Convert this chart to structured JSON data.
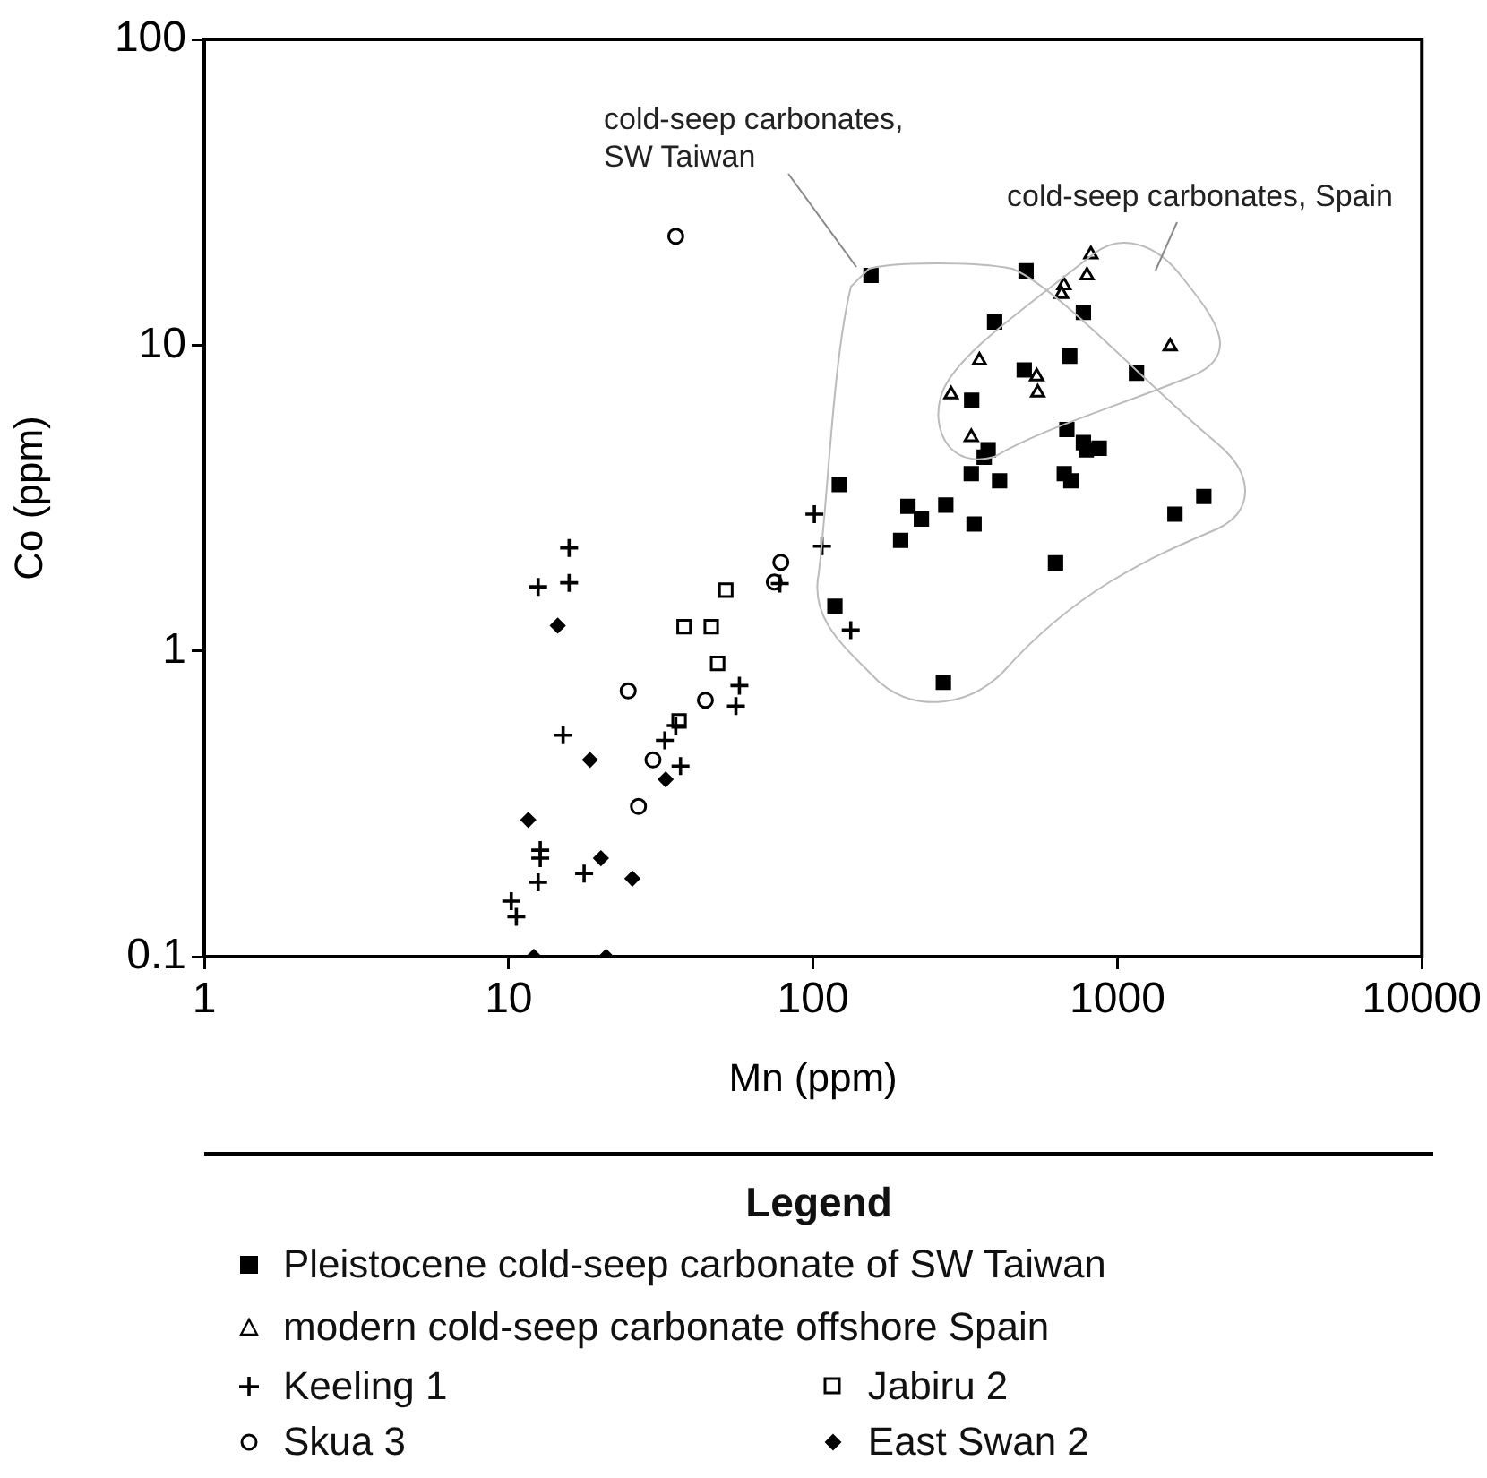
{
  "chart_data": {
    "type": "scatter",
    "xlabel": "Mn (ppm)",
    "ylabel": "Co (ppm)",
    "log": "xy",
    "grid": false,
    "legend": "bottom",
    "legend_title": "Legend",
    "xlim": [
      1,
      10000
    ],
    "xticks": [
      1,
      10,
      100,
      1000,
      10000
    ],
    "ylim": [
      0.1,
      100
    ],
    "yticks": [
      0.1,
      1,
      10,
      100
    ],
    "annotations": [
      "cold-seep carbonates, SW Taiwan",
      "cold-seep carbonates, Spain"
    ],
    "series": [
      {
        "name": "Pleistocene cold-seep carbonate of SW Taiwan",
        "color": "#000000",
        "marker": "square",
        "x": [
          155,
          501,
          773,
          395,
          697,
          494,
          1155,
          332,
          682,
          773,
          871,
          790,
          376,
          365,
          331,
          410,
          669,
          703,
          122,
          205,
          227,
          273,
          338,
          194,
          626,
          1545,
          1922,
          118,
          268
        ],
        "values": [
          16.9,
          17.5,
          12.8,
          11.9,
          9.2,
          8.3,
          8.1,
          6.6,
          5.3,
          4.8,
          4.6,
          4.55,
          4.55,
          4.3,
          3.8,
          3.6,
          3.8,
          3.6,
          3.5,
          2.97,
          2.7,
          3.0,
          2.6,
          2.3,
          1.94,
          2.8,
          3.2,
          1.4,
          0.79
        ]
      },
      {
        "name": "modern cold-seep carbonate offshore Spain",
        "color": "#000000",
        "marker": "triangle",
        "x": [
          818,
          794,
          667,
          655,
          1490,
          352,
          543,
          547,
          284,
          331
        ],
        "values": [
          19.8,
          16.9,
          15.7,
          14.7,
          9.9,
          8.9,
          7.9,
          7.0,
          6.9,
          5.0
        ]
      },
      {
        "name": "Keeling 1",
        "color": "#000000",
        "marker": "cross",
        "x": [
          101,
          107,
          133,
          15.8,
          12.5,
          15.8,
          15.1,
          57.3,
          55.8,
          35.4,
          32.6,
          36.7,
          12.7,
          12.7,
          12.5,
          17.7,
          10.2,
          10.6,
          77.8
        ],
        "values": [
          2.8,
          2.2,
          1.17,
          2.17,
          1.62,
          1.67,
          0.53,
          0.77,
          0.66,
          0.57,
          0.51,
          0.42,
          0.223,
          0.21,
          0.175,
          0.187,
          0.152,
          0.135,
          1.66
        ]
      },
      {
        "name": "Jabiru 2",
        "color": "#000000",
        "marker": "square",
        "x": [
          51.7,
          37.7,
          46.3,
          48.6,
          36.3
        ],
        "values": [
          1.58,
          1.2,
          1.2,
          0.91,
          0.59
        ]
      },
      {
        "name": "Skua 3",
        "color": "#000000",
        "marker": "circle",
        "x": [
          35.4,
          78.4,
          74.6,
          24.7,
          44.3,
          29.8,
          26.7
        ],
        "values": [
          22.7,
          1.95,
          1.68,
          0.74,
          0.69,
          0.44,
          0.31
        ]
      },
      {
        "name": "East Swan 2",
        "color": "#000000",
        "marker": "diamond",
        "x": [
          14.5,
          18.5,
          32.8,
          11.6,
          20.1,
          25.5,
          12.1,
          20.9
        ],
        "values": [
          1.21,
          0.44,
          0.38,
          0.28,
          0.21,
          0.18,
          0.1,
          0.1
        ]
      }
    ]
  }
}
